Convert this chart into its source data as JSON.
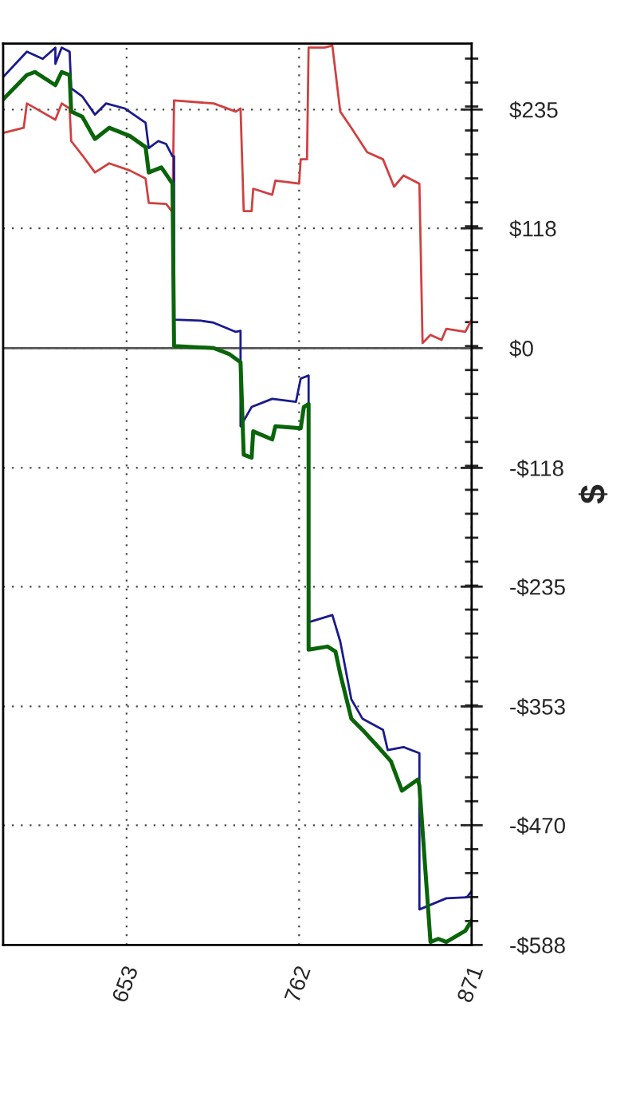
{
  "chart_data": {
    "type": "line",
    "ylabel": "$",
    "xlim": [
      575,
      871
    ],
    "xticks": [
      653,
      762,
      871
    ],
    "ylim": [
      -588,
      300
    ],
    "yticks": [
      {
        "value": 235,
        "label": "$235"
      },
      {
        "value": 118,
        "label": "$118"
      },
      {
        "value": 0,
        "label": "$0"
      },
      {
        "value": -118,
        "label": "-$118"
      },
      {
        "value": -235,
        "label": "-$235"
      },
      {
        "value": -353,
        "label": "-$353"
      },
      {
        "value": -470,
        "label": "-$470"
      },
      {
        "value": -588,
        "label": "-$588"
      }
    ],
    "grid": true,
    "legend": false,
    "marker": "none",
    "line_style": "solid",
    "ref_lines": [
      {
        "axis": "y",
        "value": 0,
        "color": "#555555",
        "line_style": "solid"
      }
    ],
    "series": [
      {
        "color": "#d04040",
        "x": [
          575,
          588,
          590,
          608,
          612,
          617,
          618,
          625,
          633,
          642,
          655,
          665,
          667,
          678,
          682,
          683,
          708,
          722,
          725,
          727,
          732,
          733,
          745,
          747,
          762,
          763,
          767,
          768,
          778,
          783,
          788,
          795,
          805,
          815,
          822,
          828,
          838,
          840,
          845,
          852,
          855,
          867,
          871
        ],
        "values": [
          212,
          217,
          241,
          225,
          241,
          236,
          204,
          190,
          173,
          182,
          175,
          167,
          143,
          142,
          134,
          244,
          241,
          233,
          236,
          135,
          135,
          157,
          151,
          165,
          162,
          186,
          186,
          296,
          296,
          298,
          233,
          217,
          193,
          186,
          159,
          170,
          162,
          5,
          13,
          8,
          19,
          16,
          28
        ]
      },
      {
        "color": "#1a1a8c",
        "x": [
          575,
          590,
          600,
          608,
          608,
          612,
          617,
          618,
          625,
          633,
          640,
          652,
          665,
          667,
          673,
          678,
          682,
          683,
          683,
          700,
          708,
          722,
          725,
          725,
          732,
          745,
          760,
          763,
          768,
          768,
          783,
          788,
          795,
          802,
          815,
          818,
          828,
          838,
          838,
          855,
          868,
          871
        ],
        "values": [
          267,
          292,
          285,
          296,
          280,
          296,
          292,
          256,
          248,
          230,
          241,
          236,
          222,
          197,
          204,
          201,
          189,
          189,
          28,
          27,
          25,
          16,
          17,
          -77,
          -58,
          -50,
          -53,
          -30,
          -27,
          -270,
          -263,
          -289,
          -346,
          -365,
          -376,
          -396,
          -393,
          -399,
          -553,
          -542,
          -541,
          -535
        ]
      },
      {
        "color": "#0a640a",
        "x": [
          575,
          590,
          595,
          608,
          612,
          617,
          618,
          625,
          633,
          642,
          655,
          665,
          667,
          675,
          682,
          683,
          708,
          718,
          725,
          727,
          732,
          733,
          745,
          747,
          763,
          765,
          768,
          768,
          780,
          785,
          788,
          795,
          802,
          812,
          820,
          827,
          837,
          838,
          845,
          850,
          855,
          867,
          871
        ],
        "values": [
          245,
          269,
          272,
          259,
          272,
          269,
          233,
          228,
          206,
          217,
          209,
          198,
          173,
          178,
          162,
          2,
          0,
          -6,
          -14,
          -105,
          -108,
          -82,
          -90,
          -77,
          -79,
          -58,
          -55,
          -297,
          -294,
          -299,
          -321,
          -365,
          -376,
          -393,
          -407,
          -436,
          -425,
          -431,
          -585,
          -582,
          -585,
          -574,
          -564
        ]
      }
    ]
  }
}
